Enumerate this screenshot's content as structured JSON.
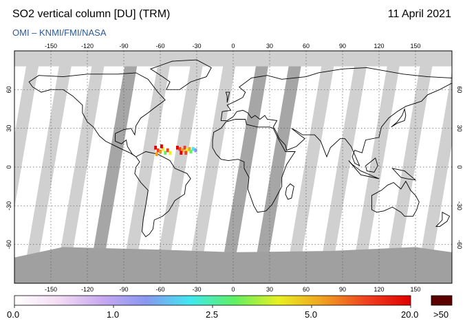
{
  "header": {
    "title": "SO2 vertical column [DU] (TRM)",
    "date": "11 April 2021",
    "credit": "OMI  –  KNMI/FMI/NASA"
  },
  "map": {
    "lon_ticks": [
      "-150",
      "-120",
      "-90",
      "-60",
      "-30",
      "0",
      "30",
      "60",
      "90",
      "120",
      "150"
    ],
    "lon_values": [
      -150,
      -120,
      -90,
      -60,
      -30,
      0,
      30,
      60,
      90,
      120,
      150
    ],
    "lat_ticks": [
      "60",
      "30",
      "0",
      "-30",
      "-60"
    ],
    "lat_values": [
      60,
      30,
      0,
      -30,
      -60
    ],
    "colors": {
      "ocean": "#ffffff",
      "swath_gap": "#d0d0d0",
      "swath_dark": "#a6a6a6",
      "polar": "#a0a0a0",
      "coast": "#000000",
      "grid": "#555555"
    },
    "so2_feature": {
      "region": "Caribbean / tropical Atlantic plume",
      "center_lon": -45,
      "center_lat": 13
    }
  },
  "colorbar": {
    "labels": [
      "0.0",
      "1.0",
      "2.5",
      "5.0",
      "20.0",
      ">50"
    ],
    "colors": [
      "#ffffff",
      "#f4dcf4",
      "#c8a8f0",
      "#8898f0",
      "#40e8f0",
      "#60f060",
      "#e8f020",
      "#f0a020",
      "#f04020",
      "#e00000"
    ],
    "overflow_color": "#5a0000"
  }
}
